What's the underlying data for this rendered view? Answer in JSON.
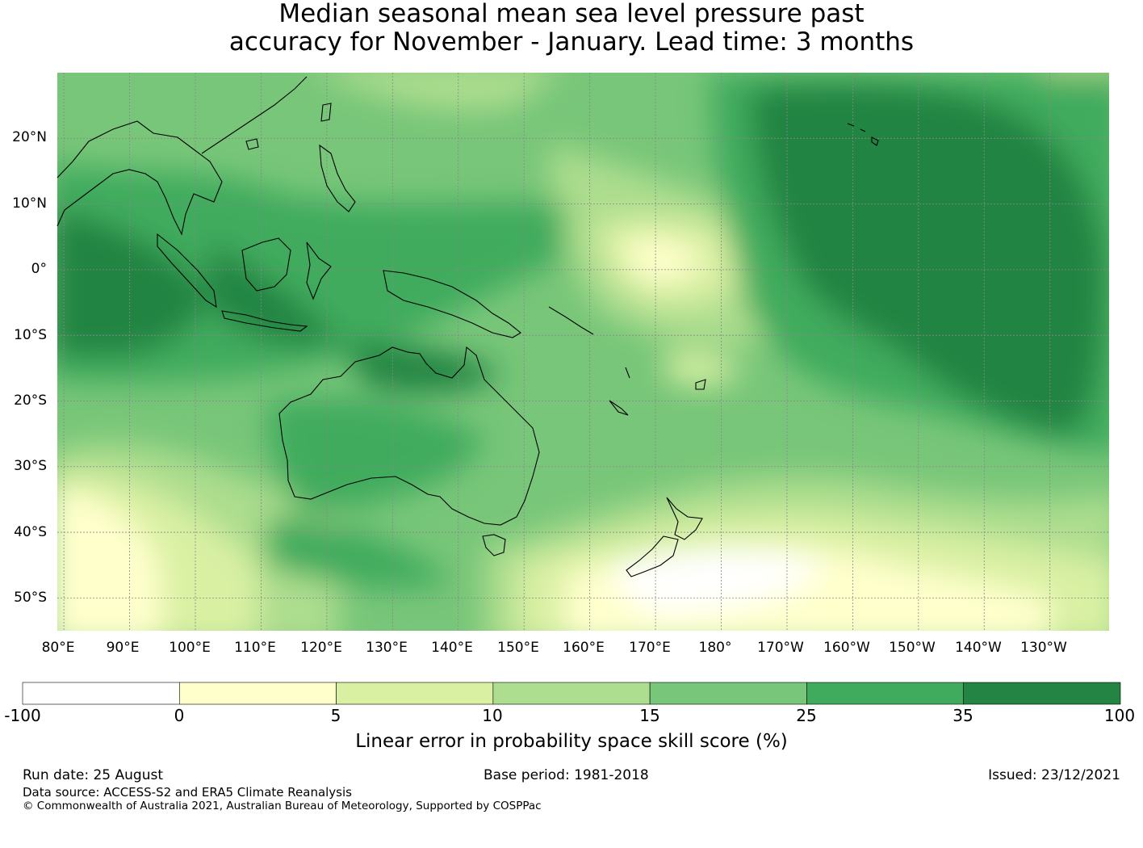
{
  "title_line1": "Median seasonal mean sea level pressure past",
  "title_line2": "accuracy for November - January. Lead time: 3 months",
  "lat_labels": [
    "20°N",
    "10°N",
    "0°",
    "10°S",
    "20°S",
    "30°S",
    "40°S",
    "50°S"
  ],
  "lon_labels": [
    "80°E",
    "90°E",
    "100°E",
    "110°E",
    "120°E",
    "130°E",
    "140°E",
    "150°E",
    "160°E",
    "170°E",
    "180°",
    "170°W",
    "160°W",
    "150°W",
    "140°W",
    "130°W"
  ],
  "colorbar": {
    "title": "Linear error in probability space skill score (%)",
    "boundaries": [
      "-100",
      "0",
      "5",
      "10",
      "15",
      "25",
      "35",
      "100"
    ],
    "colors": [
      "#ffffff",
      "#ffffcc",
      "#d9f0a3",
      "#addd8e",
      "#78c679",
      "#41ab5d",
      "#238443"
    ]
  },
  "footer": {
    "run_date": "Run date: 25 August",
    "base_period": "Base period: 1981-2018",
    "issued": "Issued: 23/12/2021",
    "data_source": "Data source: ACCESS-S2 and ERA5 Climate Reanalysis",
    "copyright": "© Commonwealth of Australia 2021, Australian Bureau of Meteorology, Supported by COSPPac"
  },
  "map": {
    "lon_range_east": [
      79,
      239
    ],
    "lat_range": [
      -55,
      30
    ],
    "gridlines": true
  }
}
